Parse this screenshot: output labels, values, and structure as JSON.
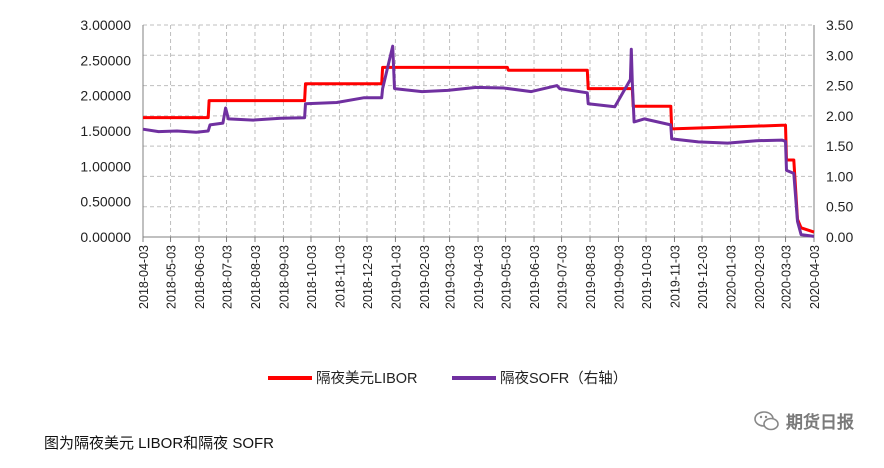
{
  "caption": "图为隔夜美元 LIBOR和隔夜 SOFR",
  "watermark": "期货日报",
  "colors": {
    "libor": "#ff0000",
    "sofr": "#7030a0",
    "grid": "#bfbfbf",
    "axis": "#808080"
  },
  "chart_data": {
    "type": "line",
    "grid": true,
    "legend_position": "bottom",
    "x_ticks": [
      "2018-04-03",
      "2018-05-03",
      "2018-06-03",
      "2018-07-03",
      "2018-08-03",
      "2018-09-03",
      "2018-10-03",
      "2018-11-03",
      "2018-12-03",
      "2019-01-03",
      "2019-02-03",
      "2019-03-03",
      "2019-04-03",
      "2019-05-03",
      "2019-06-03",
      "2019-07-03",
      "2019-08-03",
      "2019-09-03",
      "2019-10-03",
      "2019-11-03",
      "2019-12-03",
      "2020-01-03",
      "2020-02-03",
      "2020-03-03",
      "2020-04-03"
    ],
    "y_left": {
      "min": 0,
      "max": 3.0,
      "ticks": [
        "0.00000",
        "0.50000",
        "1.00000",
        "1.50000",
        "2.00000",
        "2.50000",
        "3.00000"
      ]
    },
    "y_right": {
      "min": 0,
      "max": 3.5,
      "ticks": [
        "0.00",
        "0.50",
        "1.00",
        "1.50",
        "2.00",
        "2.50",
        "3.00",
        "3.50"
      ]
    },
    "series": [
      {
        "name": "隔夜美元LIBOR",
        "axis": "left",
        "points": [
          [
            "2018-04-03",
            1.69
          ],
          [
            "2018-06-13",
            1.69
          ],
          [
            "2018-06-14",
            1.93
          ],
          [
            "2018-09-26",
            1.93
          ],
          [
            "2018-09-27",
            2.17
          ],
          [
            "2018-12-19",
            2.17
          ],
          [
            "2018-12-20",
            2.4
          ],
          [
            "2019-05-05",
            2.4
          ],
          [
            "2019-05-06",
            2.36
          ],
          [
            "2019-07-31",
            2.36
          ],
          [
            "2019-08-01",
            2.1
          ],
          [
            "2019-09-18",
            2.1
          ],
          [
            "2019-09-19",
            1.85
          ],
          [
            "2019-10-30",
            1.85
          ],
          [
            "2019-10-31",
            1.53
          ],
          [
            "2020-02-28",
            1.58
          ],
          [
            "2020-03-03",
            1.58
          ],
          [
            "2020-03-04",
            1.09
          ],
          [
            "2020-03-12",
            1.09
          ],
          [
            "2020-03-16",
            0.25
          ],
          [
            "2020-03-20",
            0.13
          ],
          [
            "2020-04-03",
            0.07
          ]
        ]
      },
      {
        "name": "隔夜SOFR（右轴）",
        "axis": "right",
        "points": [
          [
            "2018-04-03",
            1.78
          ],
          [
            "2018-04-20",
            1.74
          ],
          [
            "2018-05-10",
            1.75
          ],
          [
            "2018-05-31",
            1.73
          ],
          [
            "2018-06-13",
            1.75
          ],
          [
            "2018-06-15",
            1.85
          ],
          [
            "2018-06-29",
            1.88
          ],
          [
            "2018-07-02",
            2.13
          ],
          [
            "2018-07-05",
            1.95
          ],
          [
            "2018-08-01",
            1.93
          ],
          [
            "2018-08-31",
            1.96
          ],
          [
            "2018-09-26",
            1.97
          ],
          [
            "2018-09-27",
            2.2
          ],
          [
            "2018-10-31",
            2.22
          ],
          [
            "2018-11-30",
            2.3
          ],
          [
            "2018-12-19",
            2.3
          ],
          [
            "2018-12-20",
            2.45
          ],
          [
            "2018-12-31",
            3.15
          ],
          [
            "2019-01-02",
            2.45
          ],
          [
            "2019-02-01",
            2.4
          ],
          [
            "2019-03-01",
            2.42
          ],
          [
            "2019-04-01",
            2.47
          ],
          [
            "2019-05-01",
            2.46
          ],
          [
            "2019-05-31",
            2.4
          ],
          [
            "2019-06-28",
            2.5
          ],
          [
            "2019-07-01",
            2.45
          ],
          [
            "2019-07-31",
            2.38
          ],
          [
            "2019-08-01",
            2.2
          ],
          [
            "2019-08-30",
            2.15
          ],
          [
            "2019-09-16",
            2.6
          ],
          [
            "2019-09-17",
            3.1
          ],
          [
            "2019-09-18",
            2.55
          ],
          [
            "2019-09-20",
            1.9
          ],
          [
            "2019-10-01",
            1.95
          ],
          [
            "2019-10-30",
            1.85
          ],
          [
            "2019-10-31",
            1.62
          ],
          [
            "2019-11-29",
            1.57
          ],
          [
            "2019-12-31",
            1.55
          ],
          [
            "2020-01-31",
            1.59
          ],
          [
            "2020-02-28",
            1.6
          ],
          [
            "2020-03-03",
            1.58
          ],
          [
            "2020-03-04",
            1.1
          ],
          [
            "2020-03-12",
            1.05
          ],
          [
            "2020-03-16",
            0.26
          ],
          [
            "2020-03-20",
            0.04
          ],
          [
            "2020-04-03",
            0.01
          ]
        ]
      }
    ]
  }
}
